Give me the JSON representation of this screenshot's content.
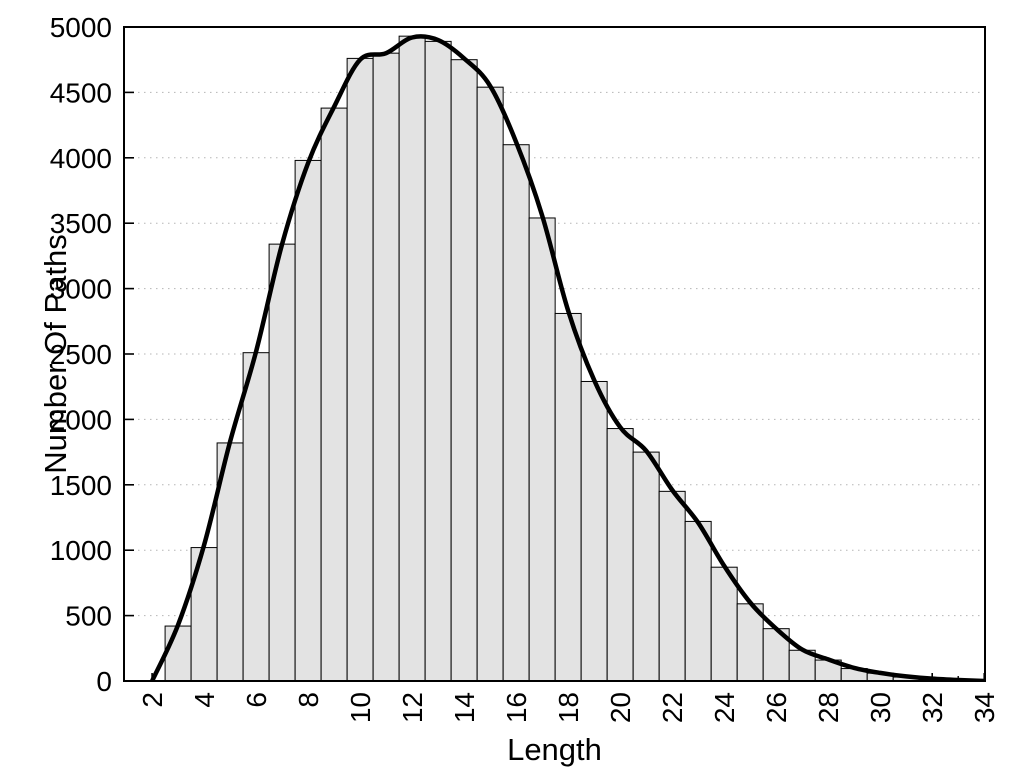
{
  "page": {
    "background": "#ffffff"
  },
  "chart_data": {
    "type": "bar",
    "subtype": "histogram-with-smooth-curve",
    "title": "",
    "xlabel": "Length",
    "ylabel": "Number Of Paths",
    "categories": [
      3,
      4,
      5,
      6,
      7,
      8,
      9,
      10,
      11,
      12,
      13,
      14,
      15,
      16,
      17,
      18,
      19,
      20,
      21,
      22,
      23,
      24,
      25,
      26,
      27,
      28,
      29,
      30,
      31,
      32,
      33
    ],
    "values": [
      420,
      1020,
      1820,
      2510,
      3340,
      3980,
      4380,
      4760,
      4800,
      4930,
      4890,
      4750,
      4540,
      4100,
      3540,
      2810,
      2290,
      1930,
      1750,
      1450,
      1220,
      870,
      590,
      400,
      235,
      160,
      95,
      60,
      30,
      15,
      5
    ],
    "bar_width": 1,
    "curve": {
      "x": [
        2,
        3,
        4,
        5,
        6,
        7,
        8,
        9,
        10,
        11,
        12,
        13,
        14,
        15,
        16,
        17,
        18,
        19,
        20,
        21,
        22,
        23,
        24,
        25,
        26,
        27,
        28,
        29,
        30,
        31,
        32,
        33,
        34
      ],
      "y": [
        0,
        430,
        1040,
        1830,
        2520,
        3340,
        3960,
        4390,
        4750,
        4800,
        4920,
        4900,
        4760,
        4550,
        4120,
        3560,
        2830,
        2300,
        1940,
        1760,
        1460,
        1210,
        880,
        600,
        400,
        240,
        165,
        100,
        62,
        35,
        18,
        8,
        0
      ]
    },
    "xlim": [
      0.92,
      34.03
    ],
    "ylim": [
      0,
      5000
    ],
    "x_major_ticks": [
      2,
      4,
      6,
      8,
      10,
      12,
      14,
      16,
      18,
      20,
      22,
      24,
      26,
      28,
      30,
      32,
      34
    ],
    "x_tick_labels": [
      "2",
      "4",
      "6",
      "8",
      "10",
      "12",
      "14",
      "16",
      "18",
      "20",
      "22",
      "24",
      "26",
      "28",
      "30",
      "32",
      "34"
    ],
    "x_minor_ticks": [
      3,
      5,
      7,
      9,
      11,
      13,
      15,
      17,
      19,
      21,
      23,
      25,
      27,
      29,
      31,
      33
    ],
    "y_ticks": [
      0,
      500,
      1000,
      1500,
      2000,
      2500,
      3000,
      3500,
      4000,
      4500,
      5000
    ],
    "y_tick_labels": [
      "0",
      "500",
      "1000",
      "1500",
      "2000",
      "2500",
      "3000",
      "3500",
      "4000",
      "4500",
      "5000"
    ],
    "grid": {
      "horizontal": true,
      "vertical": false,
      "style": "dotted"
    },
    "legend": "none",
    "colors": {
      "bar_fill": "#e3e3e3",
      "bar_border": "#000000",
      "curve": "#000000",
      "grid": "#b5b5b5",
      "axis": "#000000",
      "text": "#000000",
      "background": "#ffffff"
    }
  }
}
